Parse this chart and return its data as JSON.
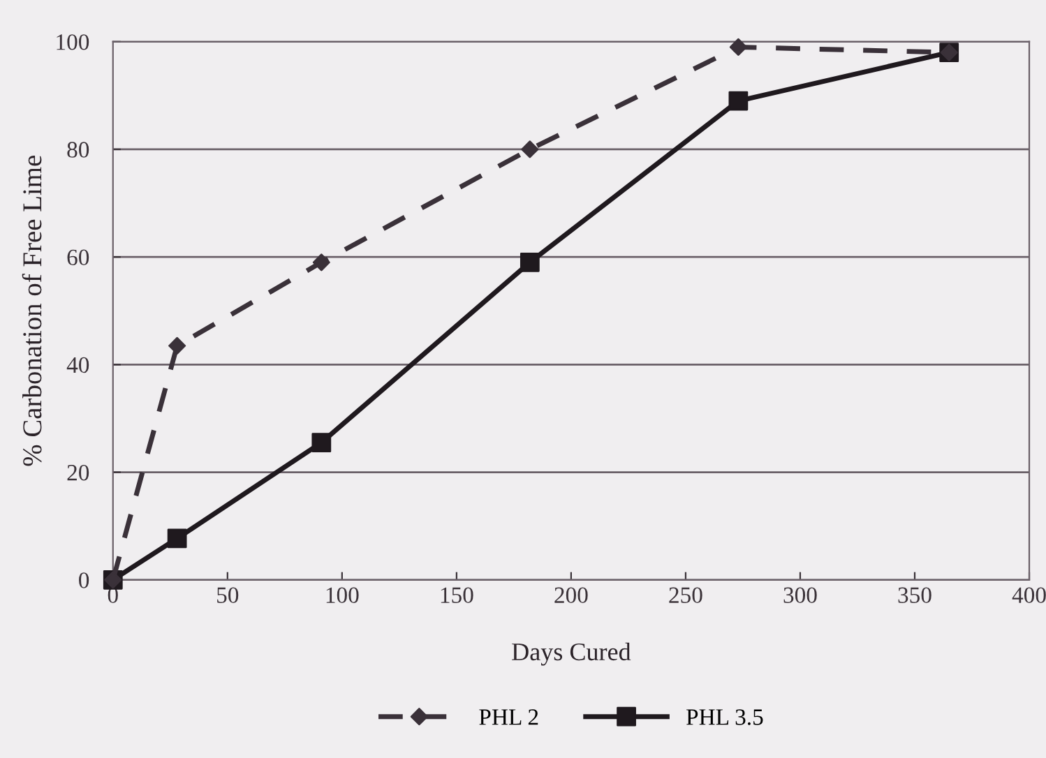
{
  "chart_data": {
    "type": "line",
    "xlabel": "Days Cured",
    "ylabel": "% Carbonation of Free Lime",
    "xlim": [
      0,
      400
    ],
    "xticks": [
      0,
      50,
      100,
      150,
      200,
      250,
      300,
      350,
      400
    ],
    "ylim": [
      0,
      100
    ],
    "yticks": [
      0,
      20,
      40,
      60,
      80,
      100
    ],
    "grid": "y",
    "legend": "bottom",
    "series": [
      {
        "name": "PHL 2",
        "color": "#3a3139",
        "x": [
          0,
          28,
          91,
          182,
          273,
          365
        ],
        "values": [
          0,
          43.5,
          59,
          80,
          99,
          98
        ],
        "marker": "diamond",
        "line_style": "dashed"
      },
      {
        "name": "PHL 3.5",
        "color": "#1f191e",
        "x": [
          0,
          28,
          91,
          182,
          273,
          365
        ],
        "values": [
          0,
          7.7,
          25.5,
          59,
          89,
          98
        ],
        "marker": "square",
        "line_style": "solid"
      }
    ]
  }
}
